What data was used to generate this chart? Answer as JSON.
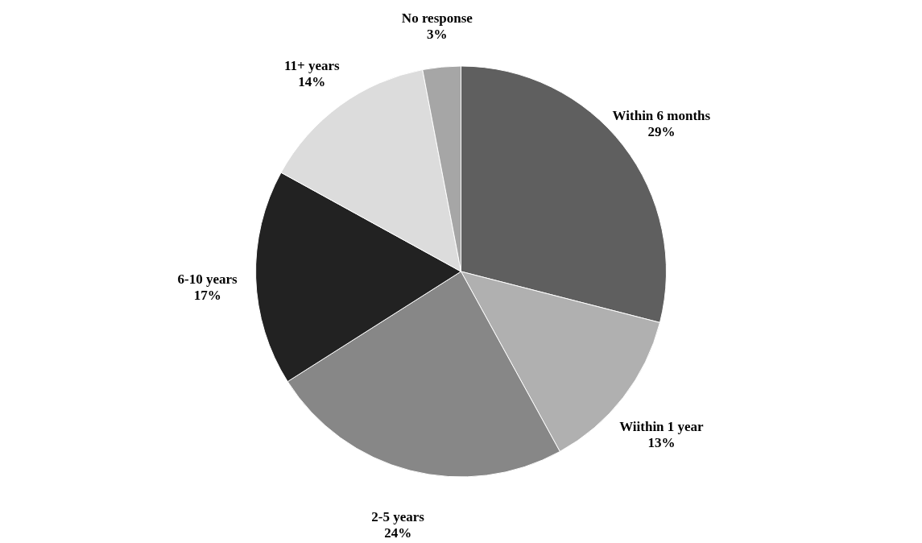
{
  "chart_data": {
    "type": "pie",
    "categories": [
      "Within 6 months",
      "Wiithin 1 year",
      "2-5 years",
      "6-10 years",
      "11+ years",
      "No response"
    ],
    "values": [
      29,
      13,
      24,
      17,
      14,
      3
    ],
    "value_labels": [
      "29%",
      "13%",
      "24%",
      "17%",
      "14%",
      "3%"
    ],
    "colors": [
      "#5f5f5f",
      "#b0b0b0",
      "#878787",
      "#222222",
      "#dcdcdc",
      "#a6a6a6"
    ]
  }
}
